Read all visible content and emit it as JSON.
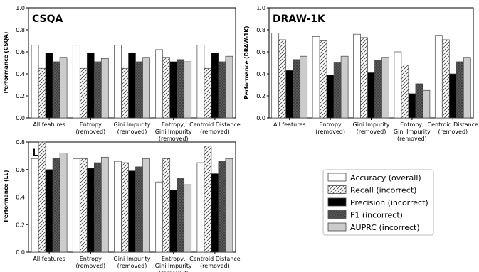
{
  "legend": {
    "placement": "bottom-right",
    "entries": [
      {
        "label": "Accuracy (overall)",
        "fill": "#ffffff",
        "pattern": "none"
      },
      {
        "label": "Recall (incorrect)",
        "fill": "#ffffff",
        "pattern": "hatch"
      },
      {
        "label": "Precision (incorrect)",
        "fill": "#000000",
        "pattern": "none"
      },
      {
        "label": "F1 (incorrect)",
        "fill": "#5a5a5a",
        "pattern": "dots"
      },
      {
        "label": "AUPRC (incorrect)",
        "fill": "#cccccc",
        "pattern": "none"
      }
    ]
  },
  "chart_data": [
    {
      "type": "bar",
      "title": "CSQA",
      "ylabel": "Performance (CSQA)",
      "ylim": [
        0,
        1.0
      ],
      "yticks": [
        "0.0",
        "0.2",
        "0.4",
        "0.6",
        "0.8",
        "1.0"
      ],
      "categories": [
        [
          "All features"
        ],
        [
          "Entropy",
          "(removed)"
        ],
        [
          "Gini Impurity",
          "(removed)"
        ],
        [
          "Entropy,",
          "Gini Impurity",
          "(removed)"
        ],
        [
          "Centroid Distance",
          "(removed)"
        ]
      ],
      "series": [
        {
          "name": "Accuracy (overall)",
          "values": [
            0.66,
            0.66,
            0.66,
            0.62,
            0.66
          ]
        },
        {
          "name": "Recall (incorrect)",
          "values": [
            0.45,
            0.45,
            0.45,
            0.55,
            0.45
          ]
        },
        {
          "name": "Precision (incorrect)",
          "values": [
            0.59,
            0.59,
            0.59,
            0.51,
            0.59
          ]
        },
        {
          "name": "F1 (incorrect)",
          "values": [
            0.51,
            0.51,
            0.51,
            0.53,
            0.51
          ]
        },
        {
          "name": "AUPRC (incorrect)",
          "values": [
            0.55,
            0.54,
            0.55,
            0.51,
            0.56
          ]
        }
      ]
    },
    {
      "type": "bar",
      "title": "DRAW-1K",
      "ylabel": "Performance (DRAW-1K)",
      "ylim": [
        0,
        1.0
      ],
      "yticks": [
        "0.0",
        "0.2",
        "0.4",
        "0.6",
        "0.8",
        "1.0"
      ],
      "categories": [
        [
          "All features"
        ],
        [
          "Entropy",
          "(removed)"
        ],
        [
          "Gini Impurity",
          "(removed)"
        ],
        [
          "Entropy,",
          "Gini Impurity",
          "(removed)"
        ],
        [
          "Centroid Distance",
          "(removed)"
        ]
      ],
      "series": [
        {
          "name": "Accuracy (overall)",
          "values": [
            0.77,
            0.74,
            0.76,
            0.6,
            0.75
          ]
        },
        {
          "name": "Recall (incorrect)",
          "values": [
            0.71,
            0.7,
            0.73,
            0.48,
            0.71
          ]
        },
        {
          "name": "Precision (incorrect)",
          "values": [
            0.43,
            0.39,
            0.41,
            0.22,
            0.4
          ]
        },
        {
          "name": "F1 (incorrect)",
          "values": [
            0.53,
            0.5,
            0.52,
            0.31,
            0.51
          ]
        },
        {
          "name": "AUPRC (incorrect)",
          "values": [
            0.56,
            0.56,
            0.55,
            0.25,
            0.55
          ]
        }
      ]
    },
    {
      "type": "bar",
      "title": "LL",
      "ylabel": "Performance (LL)",
      "ylim": [
        0,
        0.8
      ],
      "yticks": [
        "0.0",
        "0.2",
        "0.4",
        "0.6",
        "0.8"
      ],
      "categories": [
        [
          "All features"
        ],
        [
          "Entropy",
          "(removed)"
        ],
        [
          "Gini Impurity",
          "(removed)"
        ],
        [
          "Entropy,",
          "Gini Impurity",
          "(removed)"
        ],
        [
          "Centroid Distance",
          "(removed)"
        ]
      ],
      "series": [
        {
          "name": "Accuracy (overall)",
          "values": [
            0.68,
            0.68,
            0.66,
            0.51,
            0.65
          ]
        },
        {
          "name": "Recall (incorrect)",
          "values": [
            0.8,
            0.68,
            0.65,
            0.68,
            0.77
          ]
        },
        {
          "name": "Precision (incorrect)",
          "values": [
            0.6,
            0.61,
            0.59,
            0.45,
            0.57
          ]
        },
        {
          "name": "F1 (incorrect)",
          "values": [
            0.68,
            0.65,
            0.62,
            0.54,
            0.66
          ]
        },
        {
          "name": "AUPRC (incorrect)",
          "values": [
            0.72,
            0.69,
            0.68,
            0.49,
            0.68
          ]
        }
      ]
    }
  ]
}
